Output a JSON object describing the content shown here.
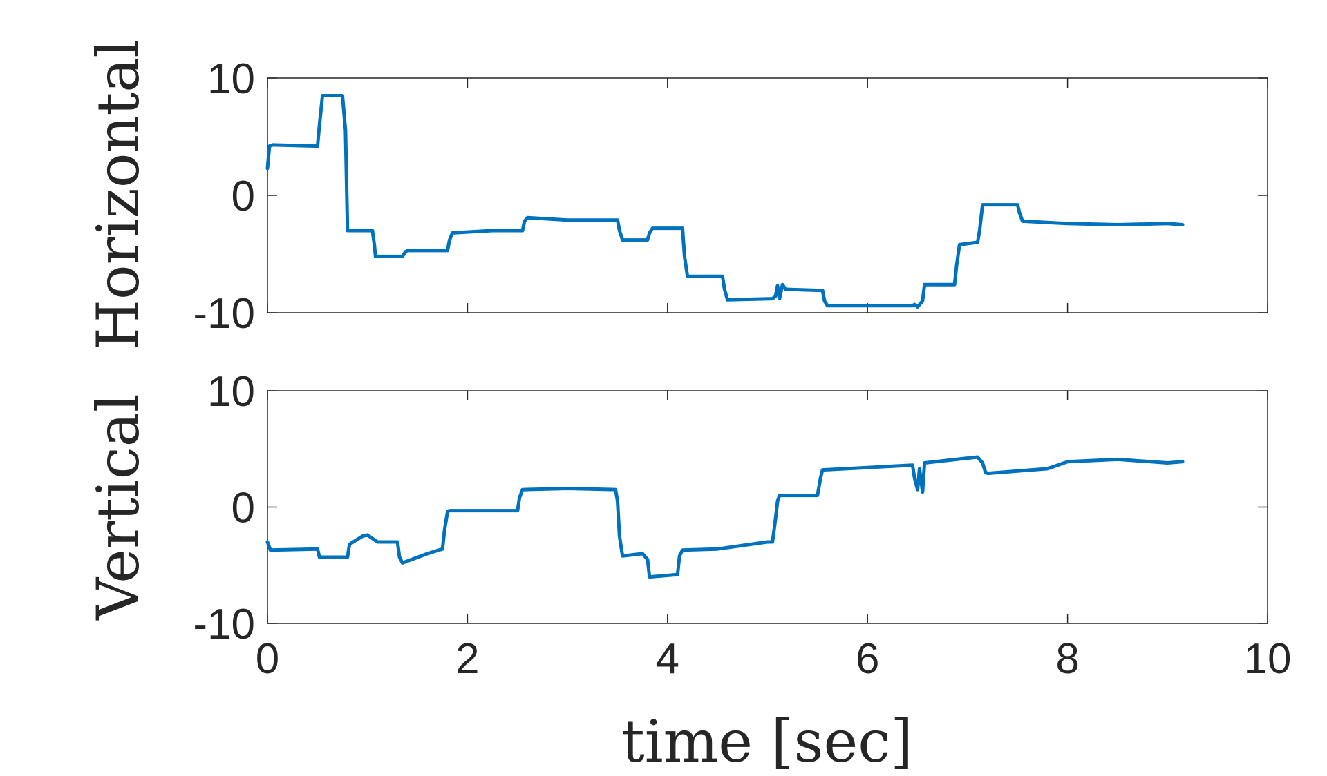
{
  "chart_data": [
    {
      "type": "line",
      "ylabel": "Horizontal",
      "ylim": [
        -10,
        10
      ],
      "xlim": [
        0,
        10
      ],
      "yticks": [
        "10",
        "0",
        "-10"
      ],
      "grid": false,
      "color": "#0072BD",
      "x": [
        0,
        0.02,
        0.05,
        0.5,
        0.52,
        0.55,
        0.75,
        0.78,
        0.8,
        1.05,
        1.07,
        1.08,
        1.35,
        1.38,
        1.4,
        1.8,
        1.82,
        1.85,
        2.25,
        2.55,
        2.57,
        2.6,
        3.0,
        3.5,
        3.52,
        3.55,
        3.8,
        3.82,
        3.85,
        4.15,
        4.17,
        4.2,
        4.55,
        4.57,
        4.6,
        5.05,
        5.08,
        5.1,
        5.12,
        5.15,
        5.18,
        5.55,
        5.57,
        5.6,
        6.45,
        6.47,
        6.5,
        6.55,
        6.57,
        6.6,
        6.87,
        6.89,
        6.92,
        7.1,
        7.12,
        7.15,
        7.5,
        7.52,
        7.55,
        8.0,
        8.5,
        9.0,
        9.15
      ],
      "y": [
        2.3,
        4.2,
        4.3,
        4.2,
        6.0,
        8.5,
        8.5,
        5.5,
        -3.0,
        -3.0,
        -4.3,
        -5.2,
        -5.2,
        -4.8,
        -4.7,
        -4.7,
        -3.8,
        -3.2,
        -3.0,
        -3.0,
        -2.2,
        -1.9,
        -2.1,
        -2.1,
        -3.0,
        -3.8,
        -3.8,
        -3.2,
        -2.8,
        -2.8,
        -5.2,
        -6.9,
        -6.9,
        -8.0,
        -8.9,
        -8.8,
        -8.6,
        -7.7,
        -8.8,
        -7.6,
        -8.0,
        -8.1,
        -9.0,
        -9.4,
        -9.4,
        -9.3,
        -9.5,
        -9.0,
        -7.6,
        -7.6,
        -7.6,
        -6.0,
        -4.2,
        -4.0,
        -3.0,
        -0.8,
        -0.8,
        -1.5,
        -2.2,
        -2.4,
        -2.5,
        -2.4,
        -2.5
      ]
    },
    {
      "type": "line",
      "ylabel": "Vertical",
      "ylim": [
        -10,
        10
      ],
      "xlim": [
        0,
        10
      ],
      "xticks": [
        "0",
        "2",
        "4",
        "6",
        "8",
        "10"
      ],
      "yticks": [
        "10",
        "0",
        "-10"
      ],
      "xlabel": "time [sec]",
      "grid": false,
      "color": "#0072BD",
      "x": [
        0,
        0.03,
        0.5,
        0.52,
        0.8,
        0.82,
        0.95,
        1.0,
        1.1,
        1.3,
        1.32,
        1.35,
        1.6,
        1.75,
        1.77,
        1.8,
        1.82,
        2.2,
        2.5,
        2.52,
        2.55,
        3.0,
        3.48,
        3.5,
        3.52,
        3.55,
        3.75,
        3.8,
        3.82,
        4.1,
        4.12,
        4.15,
        4.5,
        5.0,
        5.05,
        5.08,
        5.1,
        5.12,
        5.5,
        5.53,
        5.55,
        6.0,
        6.45,
        6.47,
        6.5,
        6.52,
        6.55,
        6.57,
        7.1,
        7.15,
        7.18,
        7.2,
        7.5,
        7.8,
        8.0,
        8.5,
        9.0,
        9.15
      ],
      "y": [
        -3.0,
        -3.7,
        -3.6,
        -4.3,
        -4.3,
        -3.2,
        -2.5,
        -2.4,
        -3.0,
        -3.0,
        -4.3,
        -4.8,
        -4.0,
        -3.6,
        -2.0,
        -0.4,
        -0.3,
        -0.3,
        -0.3,
        0.8,
        1.5,
        1.6,
        1.5,
        0.5,
        -2.5,
        -4.2,
        -4.0,
        -4.5,
        -6.0,
        -5.8,
        -4.2,
        -3.7,
        -3.6,
        -3.0,
        -3.0,
        -1.0,
        0.5,
        1.0,
        1.0,
        2.5,
        3.2,
        3.4,
        3.6,
        2.5,
        1.5,
        3.3,
        1.3,
        3.8,
        4.3,
        3.8,
        3.0,
        2.9,
        3.1,
        3.3,
        3.9,
        4.1,
        3.8,
        3.9
      ]
    }
  ]
}
